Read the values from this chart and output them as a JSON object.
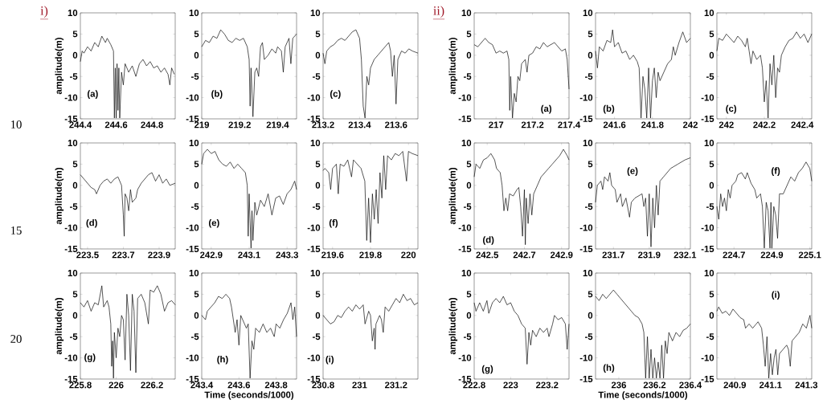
{
  "chart_data": [
    {
      "type": "line",
      "color": "#000000",
      "xlim": [
        244.4,
        244.93
      ],
      "ylim": [
        -15,
        10
      ],
      "xticks": [
        244.4,
        244.6,
        244.8
      ],
      "yticks": [
        -15,
        -10,
        -5,
        0,
        5,
        10
      ],
      "ylabel": "amplitude(m)",
      "annotations": [
        "(a)",
        "i)",
        "10"
      ],
      "x": [
        244.4,
        244.41,
        244.42,
        244.44,
        244.46,
        244.48,
        244.5,
        244.52,
        244.54,
        244.55,
        244.57,
        244.585,
        244.59,
        244.595,
        244.6,
        244.605,
        244.61,
        244.615,
        244.62,
        244.63,
        244.64,
        244.65,
        244.67,
        244.69,
        244.71,
        244.73,
        244.75,
        244.77,
        244.79,
        244.81,
        244.83,
        244.85,
        244.87,
        244.89,
        244.9,
        244.91,
        244.925
      ],
      "values": [
        -1.5,
        1,
        0.5,
        2,
        1,
        3,
        2,
        4.5,
        3,
        4,
        2.5,
        1,
        -14.8,
        -3,
        -14.8,
        -2,
        -13,
        -3,
        -14.8,
        -4,
        -7,
        -2,
        -4,
        -2.5,
        -5,
        -2,
        -1,
        -2.5,
        -1.5,
        -3,
        -2.5,
        -4,
        -3,
        -4.5,
        -7,
        -3,
        -4.5
      ]
    },
    {
      "type": "line",
      "color": "#000000",
      "xlim": [
        219,
        219.5
      ],
      "ylim": [
        -15,
        10
      ],
      "xticks": [
        219,
        219.2,
        219.4
      ],
      "yticks": [
        -15,
        -10,
        -5,
        0,
        5,
        10
      ],
      "annotations": [
        "(b)"
      ],
      "x": [
        219,
        219.02,
        219.04,
        219.06,
        219.08,
        219.1,
        219.12,
        219.14,
        219.16,
        219.18,
        219.2,
        219.22,
        219.24,
        219.25,
        219.255,
        219.26,
        219.27,
        219.28,
        219.29,
        219.3,
        219.31,
        219.32,
        219.33,
        219.35,
        219.37,
        219.39,
        219.4,
        219.42,
        219.43,
        219.44,
        219.46,
        219.47,
        219.48,
        219.5
      ],
      "values": [
        2,
        3.5,
        3,
        4.5,
        4,
        6,
        5,
        3.5,
        3,
        4,
        3.5,
        4,
        2,
        -1,
        -12,
        -3,
        -14.5,
        -4,
        -3,
        -5,
        2,
        3,
        -1,
        0,
        1.5,
        0.5,
        2,
        1,
        -4,
        2,
        4,
        -2,
        4,
        5
      ]
    },
    {
      "type": "line",
      "color": "#000000",
      "xlim": [
        213.2,
        213.72
      ],
      "ylim": [
        -15,
        10
      ],
      "xticks": [
        213.2,
        213.4,
        213.6
      ],
      "yticks": [
        -15,
        -10,
        -5,
        0,
        5,
        10
      ],
      "annotations": [
        "(c)"
      ],
      "x": [
        213.2,
        213.21,
        213.22,
        213.24,
        213.26,
        213.28,
        213.3,
        213.32,
        213.34,
        213.36,
        213.38,
        213.4,
        213.41,
        213.42,
        213.43,
        213.44,
        213.45,
        213.46,
        213.48,
        213.5,
        213.52,
        213.54,
        213.56,
        213.57,
        213.58,
        213.59,
        213.6,
        213.61,
        213.63,
        213.65,
        213.67,
        213.69,
        213.72
      ],
      "values": [
        0.5,
        -2,
        1,
        2,
        2.5,
        3.5,
        4,
        3.5,
        4.5,
        5.5,
        6,
        4,
        -1,
        -12,
        -14.8,
        -5,
        -7,
        -3,
        -1,
        0,
        1,
        2,
        3,
        1,
        -5,
        0,
        -11.5,
        -1,
        1,
        0.5,
        1.5,
        1,
        0.5
      ]
    },
    {
      "type": "line",
      "color": "#000000",
      "xlim": [
        223.46,
        223.99
      ],
      "ylim": [
        -15,
        10
      ],
      "xticks": [
        223.5,
        223.7,
        223.9
      ],
      "yticks": [
        -15,
        -10,
        -5,
        0,
        5,
        10
      ],
      "ylabel": "amplitude(m)",
      "annotations": [
        "(d)",
        "15"
      ],
      "x": [
        223.46,
        223.48,
        223.5,
        223.52,
        223.54,
        223.55,
        223.57,
        223.59,
        223.61,
        223.63,
        223.65,
        223.67,
        223.69,
        223.7,
        223.705,
        223.71,
        223.72,
        223.73,
        223.74,
        223.75,
        223.77,
        223.78,
        223.8,
        223.82,
        223.84,
        223.86,
        223.88,
        223.9,
        223.92,
        223.94,
        223.96,
        223.99
      ],
      "values": [
        2.5,
        1.5,
        0.5,
        -0.5,
        -1,
        -2,
        0,
        1,
        1.5,
        0.5,
        1.5,
        2,
        0,
        -7,
        -12,
        -2,
        -3,
        -6,
        -1,
        -4,
        -3,
        -1,
        0.5,
        1.5,
        2.5,
        3,
        1,
        2.5,
        0.5,
        1.5,
        0,
        0.5
      ]
    },
    {
      "type": "line",
      "color": "#000000",
      "xlim": [
        242.85,
        243.35
      ],
      "ylim": [
        -15,
        10
      ],
      "xticks": [
        242.9,
        243.1,
        243.3
      ],
      "yticks": [
        -15,
        -10,
        -5,
        0,
        5,
        10
      ],
      "annotations": [
        "(e)"
      ],
      "x": [
        242.85,
        242.86,
        242.88,
        242.9,
        242.92,
        242.94,
        242.96,
        242.98,
        243,
        243.02,
        243.04,
        243.06,
        243.08,
        243.09,
        243.095,
        243.1,
        243.11,
        243.115,
        243.12,
        243.13,
        243.14,
        243.16,
        243.18,
        243.2,
        243.22,
        243.24,
        243.26,
        243.28,
        243.3,
        243.32,
        243.34,
        243.35
      ],
      "values": [
        5,
        7.5,
        8.5,
        7.5,
        8,
        6,
        5,
        4.5,
        5.5,
        4,
        5,
        4,
        3,
        0,
        -12,
        -2,
        -14.8,
        -6,
        -13,
        -4,
        -7,
        -3.5,
        -5,
        -2,
        -7,
        -3,
        -2.5,
        -4.5,
        -2,
        -1,
        1,
        -1
      ]
    },
    {
      "type": "line",
      "color": "#000000",
      "xlim": [
        219.55,
        220.05
      ],
      "ylim": [
        -15,
        10
      ],
      "xticks": [
        219.6,
        219.8,
        220
      ],
      "yticks": [
        -15,
        -10,
        -5,
        0,
        5,
        10
      ],
      "annotations": [
        "(f)"
      ],
      "x": [
        219.55,
        219.56,
        219.58,
        219.59,
        219.6,
        219.62,
        219.63,
        219.64,
        219.66,
        219.68,
        219.7,
        219.71,
        219.73,
        219.75,
        219.77,
        219.78,
        219.79,
        219.8,
        219.81,
        219.82,
        219.83,
        219.84,
        219.85,
        219.86,
        219.87,
        219.88,
        219.89,
        219.91,
        219.93,
        219.95,
        219.97,
        219.99,
        220,
        220.02,
        220.05
      ],
      "values": [
        3.5,
        4,
        3,
        -1,
        4,
        5,
        -2,
        5,
        4.5,
        6,
        2,
        6,
        5,
        4,
        1,
        -13,
        -3,
        -13.5,
        -2,
        -8,
        -1,
        -9,
        3,
        -3,
        7,
        -1,
        7,
        6,
        7.5,
        7,
        8,
        1,
        8,
        7.5,
        7
      ]
    },
    {
      "type": "line",
      "color": "#000000",
      "xlim": [
        225.8,
        226.33
      ],
      "ylim": [
        -15,
        10
      ],
      "xticks": [
        225.8,
        226,
        226.2
      ],
      "yticks": [
        -15,
        -10,
        -5,
        0,
        5,
        10
      ],
      "ylabel": "amplitude(m)",
      "annotations": [
        "(g)",
        "20"
      ],
      "x": [
        225.8,
        225.82,
        225.84,
        225.86,
        225.88,
        225.9,
        225.92,
        225.93,
        225.95,
        225.96,
        225.97,
        225.975,
        225.98,
        225.985,
        225.99,
        226,
        226.01,
        226.02,
        226.03,
        226.04,
        226.05,
        226.06,
        226.07,
        226.08,
        226.09,
        226.1,
        226.11,
        226.12,
        226.14,
        226.16,
        226.18,
        226.19,
        226.21,
        226.23,
        226.25,
        226.27,
        226.29,
        226.31,
        226.33
      ],
      "values": [
        3,
        2,
        3.5,
        1,
        3,
        2.5,
        7,
        2,
        3.5,
        2,
        -2,
        -12,
        -6,
        -14.8,
        -4,
        -10,
        -3,
        -5,
        0,
        -1,
        -10.5,
        5,
        0,
        -13,
        5,
        1,
        -13.5,
        4,
        5,
        3,
        -2,
        6,
        5.5,
        7,
        5,
        1,
        3,
        3.5,
        2.5
      ]
    },
    {
      "type": "line",
      "color": "#000000",
      "xlim": [
        243.4,
        243.91
      ],
      "ylim": [
        -15,
        10
      ],
      "xticks": [
        243.4,
        243.6,
        243.8
      ],
      "yticks": [
        -15,
        -10,
        -5,
        0,
        5,
        10
      ],
      "xlabel": "Time (seconds/1000)",
      "annotations": [
        "(h)"
      ],
      "x": [
        243.4,
        243.42,
        243.43,
        243.45,
        243.47,
        243.49,
        243.51,
        243.53,
        243.55,
        243.56,
        243.57,
        243.58,
        243.59,
        243.6,
        243.61,
        243.62,
        243.64,
        243.65,
        243.66,
        243.67,
        243.68,
        243.69,
        243.71,
        243.73,
        243.75,
        243.77,
        243.79,
        243.8,
        243.82,
        243.84,
        243.86,
        243.88,
        243.89,
        243.9,
        243.91
      ],
      "values": [
        0,
        -1,
        1,
        2,
        3,
        4.5,
        4,
        5,
        4,
        2,
        -1,
        -4,
        -1,
        -7,
        0,
        -1,
        -3,
        -2,
        -14.8,
        -6,
        -8,
        -3,
        -4,
        -2,
        -4,
        -3,
        -5,
        -2,
        -3,
        -1,
        0.5,
        3,
        -1,
        2,
        -5
      ]
    },
    {
      "type": "line",
      "color": "#000000",
      "xlim": [
        230.8,
        231.32
      ],
      "ylim": [
        -15,
        10
      ],
      "xticks": [
        230.8,
        231,
        231.2
      ],
      "yticks": [
        -15,
        -10,
        -5,
        0,
        5,
        10
      ],
      "annotations": [
        "(i)"
      ],
      "x": [
        230.8,
        230.82,
        230.84,
        230.86,
        230.88,
        230.9,
        230.92,
        230.94,
        230.96,
        230.98,
        231,
        231.02,
        231.03,
        231.05,
        231.06,
        231.07,
        231.08,
        231.085,
        231.09,
        231.11,
        231.12,
        231.13,
        231.14,
        231.16,
        231.18,
        231.2,
        231.22,
        231.24,
        231.26,
        231.28,
        231.3,
        231.32
      ],
      "values": [
        0,
        -1,
        -2,
        -1.5,
        0,
        -0.5,
        1,
        2,
        1,
        2.5,
        1.5,
        2.5,
        -2,
        1,
        0,
        -6,
        -3,
        -8,
        -2,
        0,
        -1,
        -4,
        2,
        1,
        2.5,
        4,
        3,
        5,
        3.5,
        4,
        2.5,
        3
      ]
    },
    {
      "type": "line",
      "color": "#000000",
      "xlim": [
        216.88,
        217.4
      ],
      "ylim": [
        -15,
        10
      ],
      "xticks": [
        217,
        217.2,
        217.4
      ],
      "yticks": [
        -15,
        -10,
        -5,
        0,
        5,
        10
      ],
      "ylabel": "amplitude(m)",
      "annotations": [
        "(a)",
        "ii)"
      ],
      "x": [
        216.88,
        216.9,
        216.92,
        216.94,
        216.96,
        216.98,
        217,
        217.02,
        217.04,
        217.06,
        217.07,
        217.075,
        217.08,
        217.09,
        217.1,
        217.11,
        217.12,
        217.13,
        217.14,
        217.16,
        217.17,
        217.18,
        217.2,
        217.22,
        217.24,
        217.26,
        217.28,
        217.3,
        217.32,
        217.34,
        217.36,
        217.38,
        217.39,
        217.4
      ],
      "values": [
        2.5,
        2,
        3,
        4,
        3,
        2.5,
        0.5,
        1,
        0.5,
        1,
        -1,
        -13,
        -5,
        -14.8,
        -9,
        -11,
        -5,
        -6,
        -2,
        -1,
        -4,
        0,
        0.5,
        2,
        1.5,
        3,
        2,
        2.5,
        3,
        2,
        1,
        1.5,
        -1,
        -8
      ]
    },
    {
      "type": "line",
      "color": "#000000",
      "xlim": [
        241.5,
        242
      ],
      "ylim": [
        -15,
        10
      ],
      "xticks": [
        241.6,
        241.8,
        242
      ],
      "yticks": [
        -15,
        -10,
        -5,
        0,
        5,
        10
      ],
      "annotations": [
        "(b)"
      ],
      "x": [
        241.5,
        241.51,
        241.52,
        241.54,
        241.56,
        241.58,
        241.59,
        241.6,
        241.62,
        241.64,
        241.66,
        241.68,
        241.7,
        241.72,
        241.73,
        241.74,
        241.75,
        241.76,
        241.77,
        241.78,
        241.79,
        241.8,
        241.81,
        241.82,
        241.83,
        241.84,
        241.86,
        241.88,
        241.9,
        241.91,
        241.92,
        241.94,
        241.96,
        241.98,
        242
      ],
      "values": [
        1,
        -3,
        2,
        1,
        3.5,
        3,
        6,
        2,
        3,
        0.5,
        1,
        -1,
        0,
        -1.5,
        -3,
        -14.8,
        -5,
        -8,
        -14.8,
        -3,
        -14.8,
        -6,
        -3,
        -10,
        -4,
        -6,
        -4,
        -2,
        -1,
        2,
        0,
        3,
        5.5,
        3,
        4
      ]
    },
    {
      "type": "line",
      "color": "#000000",
      "xlim": [
        241.95,
        242.45
      ],
      "ylim": [
        -15,
        10
      ],
      "xticks": [
        242,
        242.2,
        242.4
      ],
      "yticks": [
        -15,
        -10,
        -5,
        0,
        5,
        10
      ],
      "annotations": [
        "(c)"
      ],
      "x": [
        241.95,
        241.96,
        241.98,
        242,
        242.02,
        242.04,
        242.06,
        242.08,
        242.1,
        242.11,
        242.12,
        242.13,
        242.14,
        242.16,
        242.18,
        242.19,
        242.2,
        242.21,
        242.22,
        242.23,
        242.24,
        242.25,
        242.26,
        242.27,
        242.28,
        242.29,
        242.31,
        242.33,
        242.35,
        242.37,
        242.39,
        242.41,
        242.43,
        242.45
      ],
      "values": [
        1,
        4,
        3.5,
        5,
        4,
        3,
        4.5,
        3.5,
        2,
        4,
        1,
        -2,
        1,
        -1,
        0,
        -3,
        -11,
        -6,
        -14.8,
        -2,
        -7,
        0,
        -10,
        -3,
        -4,
        0,
        2,
        3.5,
        4,
        5.5,
        4,
        5,
        3,
        5
      ]
    },
    {
      "type": "line",
      "color": "#000000",
      "xlim": [
        242.43,
        242.94
      ],
      "ylim": [
        -15,
        10
      ],
      "xticks": [
        242.5,
        242.7,
        242.9
      ],
      "yticks": [
        -15,
        -10,
        -5,
        0,
        5,
        10
      ],
      "ylabel": "amplitude(m)",
      "annotations": [
        "(d)"
      ],
      "x": [
        242.43,
        242.44,
        242.46,
        242.48,
        242.5,
        242.52,
        242.54,
        242.55,
        242.57,
        242.58,
        242.59,
        242.6,
        242.61,
        242.62,
        242.64,
        242.66,
        242.67,
        242.68,
        242.69,
        242.7,
        242.705,
        242.71,
        242.72,
        242.73,
        242.74,
        242.75,
        242.77,
        242.79,
        242.81,
        242.83,
        242.85,
        242.87,
        242.89,
        242.91,
        242.93,
        242.94
      ],
      "values": [
        2,
        5,
        4,
        6,
        6.5,
        7.5,
        6,
        4,
        3,
        0,
        -6,
        -3,
        -6,
        -2,
        -2.5,
        -1,
        -0.5,
        -5,
        -12,
        -1,
        -14,
        -3,
        -9,
        -2,
        -7,
        -2,
        0,
        2,
        3,
        4,
        5,
        6,
        7,
        8.5,
        7,
        6
      ]
    },
    {
      "type": "line",
      "color": "#000000",
      "xlim": [
        231.6,
        232.13
      ],
      "ylim": [
        -15,
        10
      ],
      "xticks": [
        231.7,
        231.9,
        232.1
      ],
      "yticks": [
        -15,
        -10,
        -5,
        0,
        5,
        10
      ],
      "annotations": [
        "(e)"
      ],
      "x": [
        231.6,
        231.61,
        231.63,
        231.64,
        231.65,
        231.67,
        231.68,
        231.69,
        231.71,
        231.72,
        231.74,
        231.75,
        231.77,
        231.79,
        231.8,
        231.82,
        231.84,
        231.86,
        231.87,
        231.88,
        231.89,
        231.9,
        231.91,
        231.92,
        231.93,
        231.94,
        231.95,
        231.96,
        231.98,
        232,
        232.02,
        232.04,
        232.06,
        232.08,
        232.1,
        232.13
      ],
      "values": [
        -4,
        0,
        1,
        -1,
        2,
        1,
        3,
        0,
        -1,
        -4,
        -2,
        -5,
        -3,
        -7.5,
        -4,
        -3,
        -2.5,
        -2,
        -5,
        -3,
        -12,
        -2,
        -14.5,
        -3,
        -10,
        0,
        -7,
        1,
        2,
        3,
        4,
        4.5,
        5,
        5.5,
        6,
        6.5
      ]
    },
    {
      "type": "line",
      "color": "#000000",
      "xlim": [
        224.61,
        225.11
      ],
      "ylim": [
        -15,
        10
      ],
      "xticks": [
        224.7,
        224.9,
        225.1
      ],
      "yticks": [
        -15,
        -10,
        -5,
        0,
        5,
        10
      ],
      "annotations": [
        "(f)"
      ],
      "x": [
        224.61,
        224.62,
        224.63,
        224.64,
        224.65,
        224.66,
        224.67,
        224.68,
        224.69,
        224.71,
        224.72,
        224.74,
        224.76,
        224.77,
        224.79,
        224.81,
        224.82,
        224.84,
        224.85,
        224.86,
        224.87,
        224.88,
        224.89,
        224.895,
        224.9,
        224.91,
        224.92,
        224.93,
        224.94,
        224.96,
        224.98,
        225,
        225.02,
        225.04,
        225.06,
        225.08,
        225.1,
        225.11
      ],
      "values": [
        -5,
        -8,
        -2,
        -5,
        -3,
        -6,
        -1,
        -3,
        0,
        1,
        2.5,
        3,
        1.5,
        3,
        0.5,
        -1,
        -3,
        -2,
        -5,
        -14.8,
        -4,
        -6,
        -14.8,
        -4,
        -14.8,
        -5,
        -7,
        -12.5,
        -2,
        -2,
        0,
        2,
        1,
        3,
        4,
        5.5,
        4,
        1
      ]
    },
    {
      "type": "line",
      "color": "#000000",
      "xlim": [
        222.8,
        223.32
      ],
      "ylim": [
        -15,
        10
      ],
      "xticks": [
        222.8,
        223,
        223.2
      ],
      "yticks": [
        -15,
        -10,
        -5,
        0,
        5,
        10
      ],
      "ylabel": "amplitude(m)",
      "annotations": [
        "(g)"
      ],
      "x": [
        222.8,
        222.81,
        222.83,
        222.85,
        222.87,
        222.88,
        222.9,
        222.92,
        222.94,
        222.96,
        222.98,
        223,
        223.02,
        223.04,
        223.06,
        223.08,
        223.09,
        223.1,
        223.11,
        223.12,
        223.14,
        223.16,
        223.18,
        223.2,
        223.21,
        223.23,
        223.24,
        223.26,
        223.28,
        223.3,
        223.31,
        223.32
      ],
      "values": [
        3,
        1,
        3,
        1,
        3.5,
        0.5,
        3,
        4,
        3,
        4.5,
        2.5,
        3,
        1,
        0,
        -2,
        -3,
        -11.5,
        -4,
        -7,
        -3.5,
        -5,
        -3,
        -4,
        -3,
        -5,
        -2,
        0,
        -1,
        -0.5,
        -2,
        -8,
        -2
      ]
    },
    {
      "type": "line",
      "color": "#000000",
      "xlim": [
        235.87,
        236.4
      ],
      "ylim": [
        -15,
        10
      ],
      "xticks": [
        236,
        236.2,
        236.4
      ],
      "yticks": [
        -15,
        -10,
        -5,
        0,
        5,
        10
      ],
      "xlabel": "Time (seconds/1000)",
      "annotations": [
        "(h)"
      ],
      "x": [
        235.87,
        235.89,
        235.91,
        235.93,
        235.95,
        235.97,
        235.99,
        236.01,
        236.03,
        236.05,
        236.07,
        236.09,
        236.11,
        236.13,
        236.14,
        236.15,
        236.16,
        236.17,
        236.18,
        236.19,
        236.2,
        236.21,
        236.22,
        236.23,
        236.24,
        236.25,
        236.26,
        236.27,
        236.28,
        236.3,
        236.32,
        236.34,
        236.36,
        236.38,
        236.4
      ],
      "values": [
        4.5,
        3.5,
        5,
        4,
        5,
        6,
        5,
        4,
        3,
        2,
        1,
        0,
        -0.5,
        -2,
        -4,
        -14.8,
        -5,
        -14.8,
        -8,
        -14.8,
        -10,
        -14.8,
        -11,
        -14.8,
        -7,
        -14.8,
        -6,
        -9,
        -4,
        -6,
        -4,
        -5,
        -3.5,
        -3,
        -2
      ]
    },
    {
      "type": "line",
      "color": "#000000",
      "xlim": [
        240.8,
        241.33
      ],
      "ylim": [
        -15,
        10
      ],
      "xticks": [
        240.9,
        241.1,
        241.3
      ],
      "yticks": [
        -15,
        -10,
        -5,
        0,
        5,
        10
      ],
      "annotations": [
        "(i)"
      ],
      "x": [
        240.8,
        240.81,
        240.83,
        240.85,
        240.87,
        240.89,
        240.91,
        240.93,
        240.95,
        240.96,
        240.98,
        241,
        241.02,
        241.03,
        241.05,
        241.06,
        241.07,
        241.08,
        241.09,
        241.1,
        241.11,
        241.12,
        241.13,
        241.14,
        241.15,
        241.17,
        241.19,
        241.2,
        241.21,
        241.22,
        241.24,
        241.26,
        241.28,
        241.3,
        241.32,
        241.33
      ],
      "values": [
        1,
        2,
        0.5,
        1,
        0,
        1.5,
        0.5,
        -0.5,
        -1,
        -3,
        -2,
        -3,
        -2,
        -1.5,
        -3,
        -7,
        -12,
        -5,
        -14.8,
        -9,
        -14,
        -10,
        -8,
        -14,
        -9,
        -8,
        -7,
        -8,
        -12,
        -6,
        -5,
        -4,
        -2,
        -3,
        0,
        -3
      ]
    }
  ]
}
